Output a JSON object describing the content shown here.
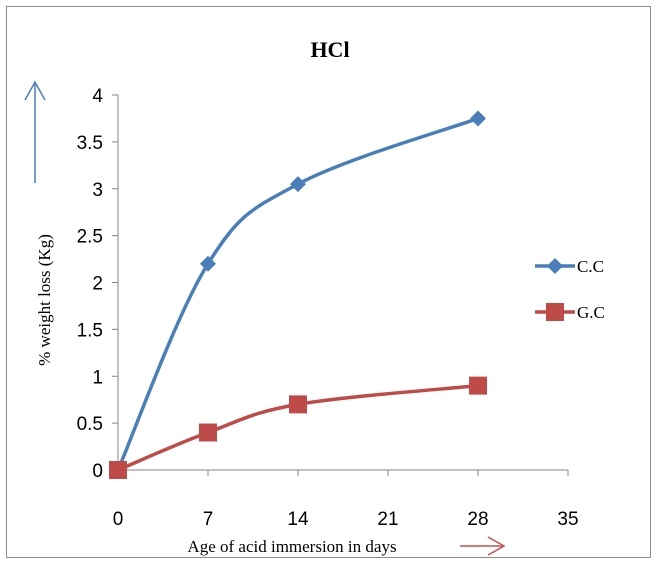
{
  "chart_data": {
    "type": "line",
    "title": "HCl",
    "xlabel": "Age of acid immersion in days",
    "ylabel": "%   weight loss  (Kg)",
    "x_ticks": [
      0,
      7,
      14,
      21,
      28,
      35
    ],
    "y_ticks": [
      0,
      0.5,
      1,
      1.5,
      2,
      2.5,
      3,
      3.5,
      4
    ],
    "xlim": [
      0,
      35
    ],
    "ylim": [
      0,
      4
    ],
    "grid": false,
    "legend_position": "right",
    "series": [
      {
        "name": "C.C",
        "color": "#4a7ebb",
        "marker": "diamond",
        "x": [
          0,
          7,
          14,
          28
        ],
        "values": [
          0,
          2.2,
          3.05,
          3.75
        ]
      },
      {
        "name": "G.C",
        "color": "#be4b48",
        "marker": "square",
        "x": [
          0,
          7,
          14,
          28
        ],
        "values": [
          0,
          0.4,
          0.7,
          0.9
        ]
      }
    ],
    "annotations": [
      {
        "type": "arrow",
        "direction": "up",
        "color": "#4a7ebb",
        "near": "y-axis-title"
      },
      {
        "type": "arrow",
        "direction": "right",
        "color": "#c0504d",
        "near": "x-axis-title"
      }
    ]
  }
}
